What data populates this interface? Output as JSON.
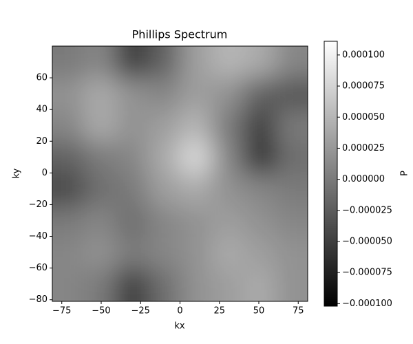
{
  "chart_data": {
    "type": "heatmap",
    "title": "Phillips Spectrum",
    "x_label": "kx",
    "y_label": "ky",
    "colorbar_label": "P",
    "xlim": [
      -81,
      81
    ],
    "ylim": [
      -81,
      80
    ],
    "xticks": [
      {
        "value": -75,
        "label": "−75"
      },
      {
        "value": -50,
        "label": "−50"
      },
      {
        "value": -25,
        "label": "−25"
      },
      0,
      25,
      50,
      75
    ],
    "yticks": [
      {
        "value": -80,
        "label": "−80"
      },
      {
        "value": -60,
        "label": "−60"
      },
      {
        "value": -40,
        "label": "−40"
      },
      {
        "value": -20,
        "label": "−20"
      },
      0,
      20,
      40,
      60
    ],
    "clim": [
      -0.000102,
      0.000111
    ],
    "cticks": [
      {
        "value": -0.0001,
        "label": "−0.000100"
      },
      {
        "value": -7.5e-05,
        "label": "−0.000075"
      },
      {
        "value": -5e-05,
        "label": "−0.000050"
      },
      {
        "value": -2.5e-05,
        "label": "−0.000025"
      },
      {
        "value": 0,
        "label": "0.000000"
      },
      {
        "value": 2.5e-05,
        "label": "0.000025"
      },
      {
        "value": 5e-05,
        "label": "0.000050"
      },
      {
        "value": 7.5e-05,
        "label": "0.000075"
      },
      {
        "value": 0.0001,
        "label": "0.000100"
      }
    ],
    "colormap": "gray",
    "z_rows_top_to_bottom": [
      [
        0,
        1e-05,
        -5e-05,
        -2e-05,
        3e-05,
        5e-05,
        4e-05,
        1e-05
      ],
      [
        2e-05,
        4e-05,
        2e-05,
        1e-05,
        3e-05,
        2e-05,
        -2e-05,
        -3e-05
      ],
      [
        1e-05,
        4e-05,
        2e-05,
        3e-05,
        5e-05,
        0,
        -5e-05,
        0
      ],
      [
        -2e-05,
        0,
        1e-05,
        4e-05,
        8e-05,
        1e-05,
        -6e-05,
        -1e-05
      ],
      [
        -4e-05,
        -1e-05,
        0,
        3e-05,
        4e-05,
        2e-05,
        1e-05,
        0
      ],
      [
        0,
        1e-05,
        -1e-05,
        1e-05,
        2e-05,
        3e-05,
        2e-05,
        1e-05
      ],
      [
        1e-05,
        2e-05,
        0,
        1e-05,
        2e-05,
        4e-05,
        3e-05,
        2e-05
      ],
      [
        1e-05,
        0,
        -5e-05,
        -1e-05,
        2e-05,
        3e-05,
        4e-05,
        2e-05
      ]
    ]
  }
}
